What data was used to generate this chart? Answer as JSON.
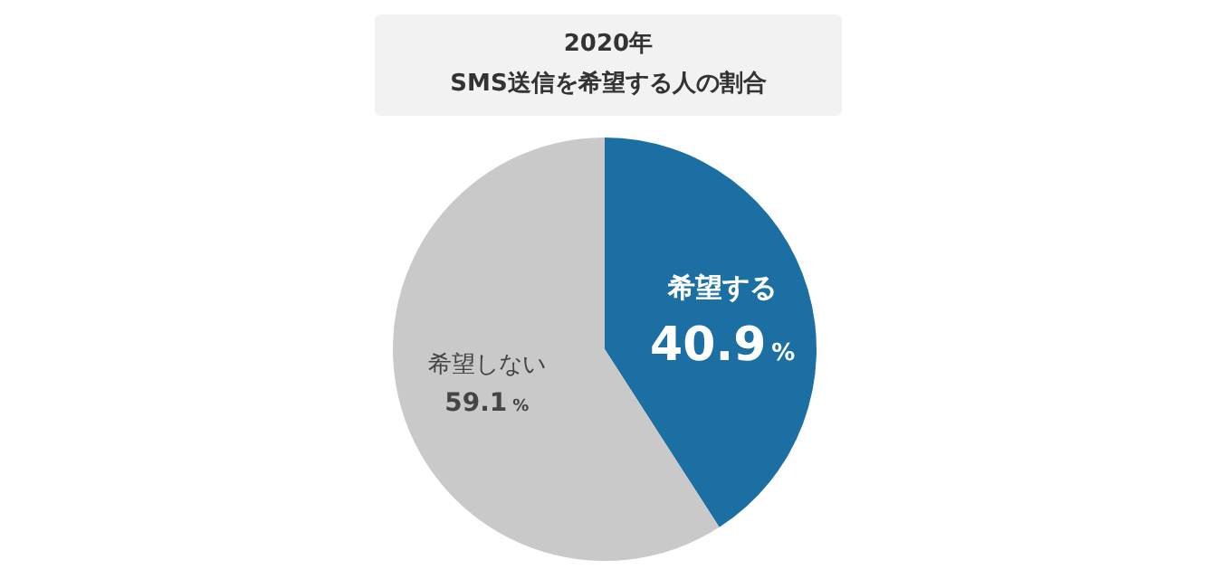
{
  "chart_data": {
    "type": "pie",
    "title": "2020年\nSMS送信を希望する人の割合",
    "categories": [
      "希望する",
      "希望しない"
    ],
    "values": [
      40.9,
      59.1
    ],
    "colors": [
      "#1c6fa3",
      "#c9c9c9"
    ],
    "value_labels": [
      "40.9%",
      "59.1%"
    ],
    "legend": false
  }
}
